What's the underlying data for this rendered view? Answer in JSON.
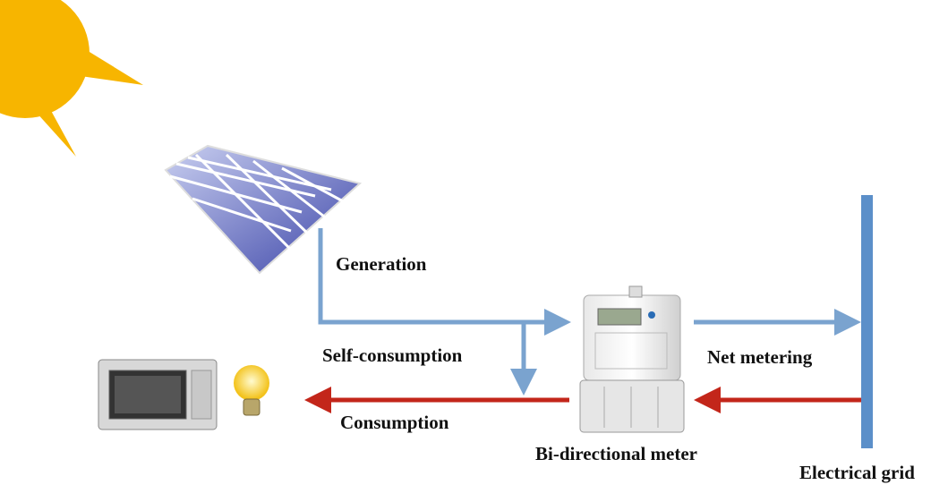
{
  "labels": {
    "generation": "Generation",
    "self_consumption": "Self-consumption",
    "consumption": "Consumption",
    "net_metering": "Net metering",
    "meter": "Bi-directional meter",
    "grid": "Electrical grid"
  }
}
